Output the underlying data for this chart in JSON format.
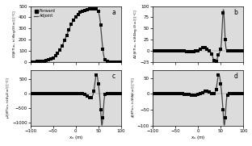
{
  "legend_labels": [
    "Forward",
    "Adjoint"
  ],
  "xlabel": "$x_s$ (m)",
  "panel_labels": [
    "a",
    "b",
    "c",
    "d"
  ],
  "xlim": [
    -100,
    100
  ],
  "ylabel_a": "$G_0[\\delta T(x_s,\\,t_s)\\delta\\log G_0(x_s)]$ [°C]",
  "ylabel_b": "$\\Delta G[\\delta T(x_s,\\,t_s)\\delta\\Delta\\log G(x_s)]$ [°C]",
  "ylabel_c": "$\\mu_0[\\delta T(x_s,\\,t_s)\\delta\\mu_0(x_s)]$ [°C]",
  "ylabel_d": "$\\phi[\\delta T(x_s,\\,t_s)\\delta\\delta\\phi(x_s)]$ [°C]",
  "ylim_a": [
    0,
    500
  ],
  "ylim_b": [
    -25,
    100
  ],
  "ylim_c": [
    -1100,
    800
  ],
  "ylim_d": [
    -100,
    75
  ],
  "yticks_a": [
    0,
    100,
    200,
    300,
    400,
    500
  ],
  "yticks_b": [
    -25,
    0,
    25,
    50,
    75,
    100
  ],
  "yticks_c": [
    -1000,
    -500,
    0,
    500
  ],
  "yticks_d": [
    -100,
    -50,
    0,
    50
  ],
  "background_color": "#dcdcdc",
  "line_color": "#444444",
  "marker_color": "black",
  "marker": "s",
  "marker_size": 2.2,
  "linewidth": 0.9
}
